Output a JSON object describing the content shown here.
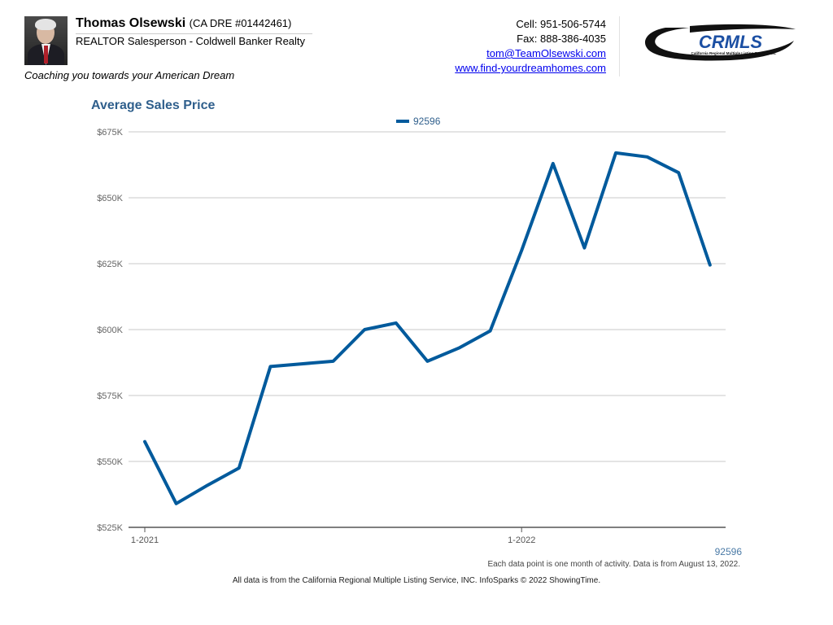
{
  "agent": {
    "name": "Thomas Olsewski",
    "license": "(CA DRE #01442461)",
    "title": "REALTOR Salesperson - Coldwell Banker Realty",
    "tagline": "Coaching you towards your American Dream"
  },
  "contact": {
    "cell": "Cell: 951-506-5744",
    "fax": "Fax: 888-386-4035",
    "email": "tom@TeamOlsewski.com",
    "website": "www.find-yourdreamhomes.com"
  },
  "logo": {
    "text": "CRMLS",
    "subtext": "California Regional Multiple Listing Service, Inc."
  },
  "chart_data": {
    "type": "line",
    "title": "Average Sales Price",
    "x_axis_ticks": [
      "1-2021",
      "1-2022"
    ],
    "y_axis_ticks": [
      "$675K",
      "$650K",
      "$625K",
      "$600K",
      "$575K",
      "$550K",
      "$525K"
    ],
    "ylim": [
      525000,
      675000
    ],
    "grid": true,
    "legend_position": "top",
    "x": [
      "2021-01",
      "2021-02",
      "2021-03",
      "2021-04",
      "2021-05",
      "2021-06",
      "2021-07",
      "2021-08",
      "2021-09",
      "2021-10",
      "2021-11",
      "2021-12",
      "2022-01",
      "2022-02",
      "2022-03",
      "2022-04",
      "2022-05",
      "2022-06",
      "2022-07"
    ],
    "series": [
      {
        "name": "92596",
        "color": "#005a9c",
        "values": [
          557500,
          534000,
          541000,
          547500,
          586000,
          587000,
          588000,
          600000,
          602500,
          588000,
          593000,
          599500,
          630000,
          663000,
          631000,
          667000,
          665500,
          659500,
          624500
        ]
      }
    ]
  },
  "footer": {
    "series_label": "92596",
    "note": "Each data point is one month of activity. Data is from August 13, 2022.",
    "source": "All data is from the California Regional Multiple Listing Service, INC. InfoSparks © 2022 ShowingTime."
  }
}
